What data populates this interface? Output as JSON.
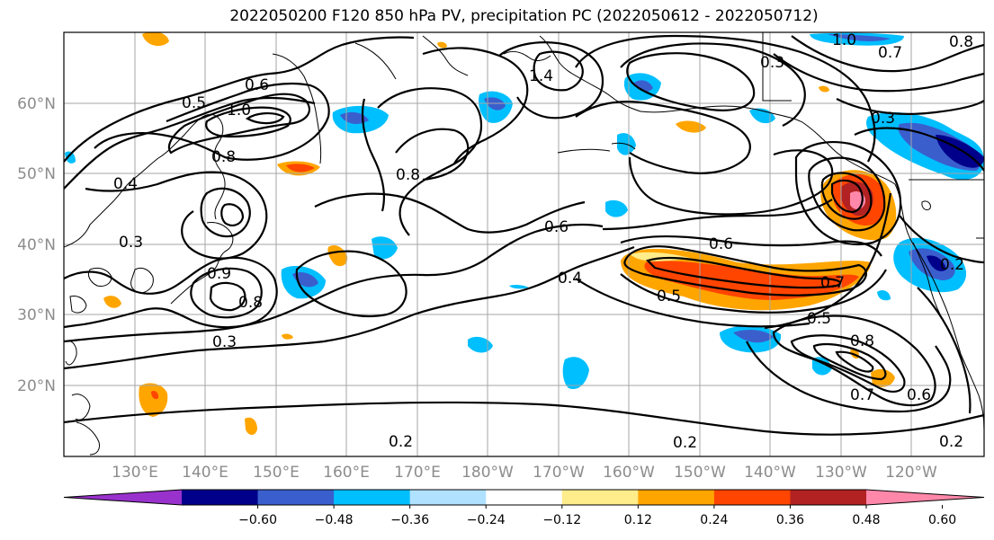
{
  "title": "2022050200 F120 850 hPa PV, precipitation PC (2022050612 - 2022050712)",
  "lat_ticks": [
    "60°N",
    "50°N",
    "40°N",
    "30°N",
    "20°N"
  ],
  "lon_ticks": [
    "130°E",
    "140°E",
    "150°E",
    "160°E",
    "170°E",
    "180°W",
    "170°W",
    "160°W",
    "150°W",
    "140°W",
    "130°W",
    "120°W"
  ],
  "contour_labels": [
    "0.5",
    "0.6",
    "1.0",
    "0.8",
    "0.4",
    "0.3",
    "0.9",
    "0.8",
    "0.3",
    "0.8",
    "0.6",
    "0.4",
    "0.6",
    "0.5",
    "0.7",
    "0.5",
    "0.8",
    "0.7",
    "0.6",
    "0.2",
    "0.2",
    "0.2",
    "1.0",
    "0.7",
    "0.3",
    "0.8",
    "0.3",
    "1.4",
    "0.2"
  ],
  "colorbar": {
    "ticks": [
      "−0.60",
      "−0.48",
      "−0.36",
      "−0.24",
      "−0.12",
      "0.12",
      "0.24",
      "0.36",
      "0.48",
      "0.60"
    ],
    "colors": [
      "#9932cc",
      "#00008b",
      "#3a5fcd",
      "#00bfff",
      "#b0e2ff",
      "#ffffff",
      "#ffec8b",
      "#ffa500",
      "#ff4500",
      "#b22222",
      "#ff88aa"
    ]
  }
}
